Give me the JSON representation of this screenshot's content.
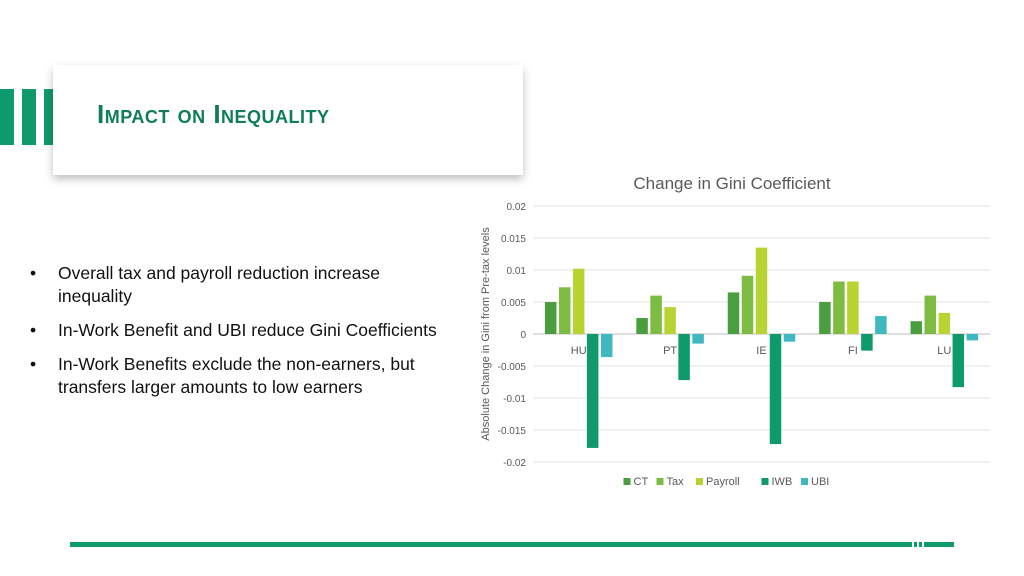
{
  "slide": {
    "title": "Impact on Inequality",
    "bullets": [
      "Overall tax and payroll reduction increase inequality",
      "In-Work Benefit and UBI reduce Gini Coefficients",
      "In-Work Benefits exclude the non-earners, but transfers larger amounts to low earners"
    ]
  },
  "chart_data": {
    "type": "bar",
    "title": "Change in Gini Coefficient",
    "xlabel": "",
    "ylabel": "Absolute Change in Gini from Pre-tax levels",
    "categories": [
      "HU",
      "PT",
      "IE",
      "FI",
      "LU"
    ],
    "ylim": [
      -0.02,
      0.02
    ],
    "yticks": [
      "0.02",
      "0.015",
      "0.01",
      "0.005",
      "0",
      "-0.005",
      "-0.01",
      "-0.015",
      "-0.02"
    ],
    "grid": true,
    "legend_position": "bottom",
    "series": [
      {
        "name": "CT",
        "color": "#4a9e3f",
        "values": [
          0.005,
          0.0025,
          0.0065,
          0.005,
          0.002
        ]
      },
      {
        "name": "Tax",
        "color": "#7dbb42",
        "values": [
          0.0073,
          0.006,
          0.0091,
          0.0082,
          0.006
        ]
      },
      {
        "name": "Payroll",
        "color": "#b8d432",
        "values": [
          0.0102,
          0.0042,
          0.0135,
          0.0082,
          0.0033
        ]
      },
      {
        "name": "IWB",
        "color": "#0f9a6e",
        "values": [
          -0.0178,
          -0.0072,
          -0.0172,
          -0.0026,
          -0.0083
        ]
      },
      {
        "name": "UBI",
        "color": "#3fb8c0",
        "values": [
          -0.0036,
          -0.0015,
          -0.0012,
          0.0028,
          -0.001
        ]
      }
    ]
  },
  "colors": {
    "accent": "#0f9a6e",
    "title": "#0f7d5a"
  }
}
